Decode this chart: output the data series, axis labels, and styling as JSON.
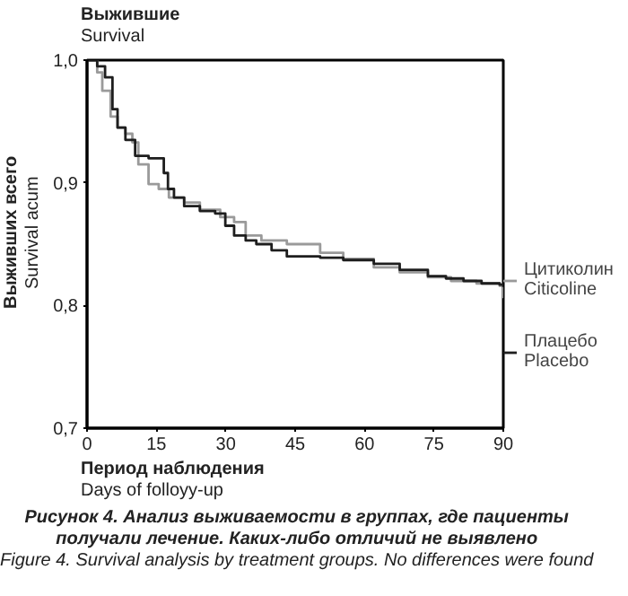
{
  "chart_data": {
    "type": "step",
    "title": "Выжившие\nSurvival",
    "xlabel": "Период наблюдения\nDays of folloyy-up",
    "ylabel": "Выживших всего\nSurvival acum",
    "annotations": [
      "Рисунок 4. Анализ выживаемости в группах, где пациенты\nполучали лечение. Каких-либо отличий не выявлено",
      "Figure 4. Survival analysis by treatment groups. No differences were found"
    ],
    "xlim": [
      0,
      90
    ],
    "ylim": [
      0.7,
      1.0
    ],
    "xticks": [
      0,
      15,
      30,
      45,
      60,
      75,
      90
    ],
    "yticks": [
      {
        "value": 0.7,
        "label": "0,7"
      },
      {
        "value": 0.8,
        "label": "0,8"
      },
      {
        "value": 0.9,
        "label": "0,9"
      },
      {
        "value": 1.0,
        "label": "1,0"
      }
    ],
    "grid": false,
    "legend": "right",
    "line_style": "solid",
    "series": [
      {
        "name": "Цитиколин\nCiticoline",
        "color": "#9a9a9a",
        "x": [
          0,
          2.2,
          3.3,
          5.1,
          6.6,
          8.3,
          9.8,
          11.1,
          13.3,
          15.5,
          17.7,
          21,
          24.4,
          28.8,
          31.8,
          34.3,
          37.7,
          43.2,
          50.4,
          55.4,
          62,
          67.6,
          73.7,
          78.7,
          84.2,
          89.2,
          90
        ],
        "values": [
          1.0,
          0.99,
          0.975,
          0.954,
          0.945,
          0.94,
          0.933,
          0.915,
          0.899,
          0.895,
          0.888,
          0.884,
          0.878,
          0.872,
          0.868,
          0.857,
          0.853,
          0.85,
          0.843,
          0.838,
          0.831,
          0.827,
          0.823,
          0.82,
          0.818,
          0.816,
          0.806
        ]
      },
      {
        "name": "Плацебо\nPlacebo",
        "color": "#1e1e1e",
        "x": [
          0,
          2.2,
          3.9,
          5.5,
          6.6,
          8.3,
          10.4,
          13.3,
          16.6,
          17.5,
          18.8,
          21,
          24.4,
          27.7,
          29.9,
          31.8,
          34.3,
          36.6,
          39.9,
          43.2,
          50.4,
          55.4,
          62,
          67.6,
          73.7,
          77.6,
          81.4,
          85.3,
          89.2,
          90
        ],
        "values": [
          1.0,
          0.995,
          0.986,
          0.96,
          0.945,
          0.935,
          0.922,
          0.92,
          0.908,
          0.895,
          0.888,
          0.881,
          0.877,
          0.875,
          0.865,
          0.857,
          0.853,
          0.85,
          0.845,
          0.84,
          0.839,
          0.837,
          0.834,
          0.829,
          0.824,
          0.822,
          0.82,
          0.818,
          0.817,
          0.815
        ]
      }
    ]
  }
}
